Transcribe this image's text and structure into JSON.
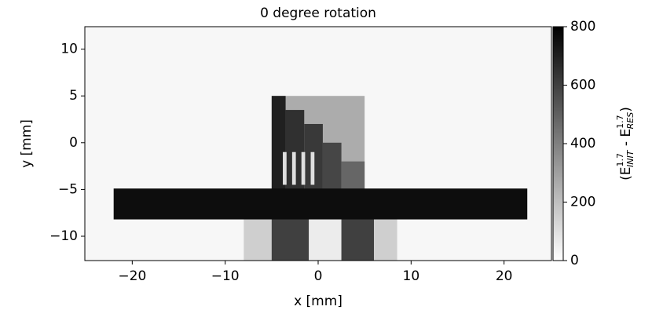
{
  "chart_data": {
    "type": "heatmap",
    "title": "0 degree rotation",
    "x_label": "x [mm]",
    "y_label": "y [mm]",
    "colorbar_label": [
      "(E",
      "1.7",
      "INIT",
      " - E",
      "1.7",
      "RES",
      ")"
    ],
    "colormap": "gray_r",
    "xlim": [
      -25.1,
      25.1
    ],
    "ylim": [
      -12.6,
      12.4
    ],
    "xticks": [
      {
        "value": -20,
        "label": "−20"
      },
      {
        "value": -10,
        "label": "−10"
      },
      0,
      10,
      20
    ],
    "yticks": [
      {
        "value": -10,
        "label": "−10"
      },
      {
        "value": -5,
        "label": "−5"
      },
      0,
      5,
      10
    ],
    "clim": [
      0,
      800
    ],
    "cticks": [
      0,
      200,
      400,
      600,
      800
    ],
    "background": 25,
    "regions": [
      {
        "x": [
          -8,
          8.5
        ],
        "y": [
          -12.6,
          -8
        ],
        "value": 150
      },
      {
        "x": [
          -5,
          -1
        ],
        "y": [
          -12.6,
          -8
        ],
        "value": 600
      },
      {
        "x": [
          -1,
          2.5
        ],
        "y": [
          -12.6,
          -8
        ],
        "value": 60
      },
      {
        "x": [
          2.5,
          6
        ],
        "y": [
          -12.6,
          -8
        ],
        "value": 600
      },
      {
        "x": [
          -5,
          5
        ],
        "y": [
          -5,
          5
        ],
        "value": 260
      },
      {
        "x": [
          -5,
          -3.5
        ],
        "y": [
          -5,
          5
        ],
        "value": 700
      },
      {
        "x": [
          -3.5,
          -1.5
        ],
        "y": [
          -5,
          3.5
        ],
        "value": 650
      },
      {
        "x": [
          -1.5,
          0.5
        ],
        "y": [
          -5,
          2
        ],
        "value": 620
      },
      {
        "x": [
          0.5,
          2.5
        ],
        "y": [
          -5,
          0
        ],
        "value": 580
      },
      {
        "x": [
          2.5,
          5
        ],
        "y": [
          -5,
          -2
        ],
        "value": 480
      },
      {
        "x": [
          -3.8,
          -3.4
        ],
        "y": [
          -4.5,
          -1
        ],
        "value": 100
      },
      {
        "x": [
          -2.8,
          -2.4
        ],
        "y": [
          -4.5,
          -1
        ],
        "value": 100
      },
      {
        "x": [
          -1.8,
          -1.4
        ],
        "y": [
          -4.5,
          -1
        ],
        "value": 100
      },
      {
        "x": [
          -0.8,
          -0.4
        ],
        "y": [
          -4.5,
          -1
        ],
        "value": 100
      },
      {
        "x": [
          -22,
          22.5
        ],
        "y": [
          -8.2,
          -4.9
        ],
        "value": 760
      }
    ]
  }
}
